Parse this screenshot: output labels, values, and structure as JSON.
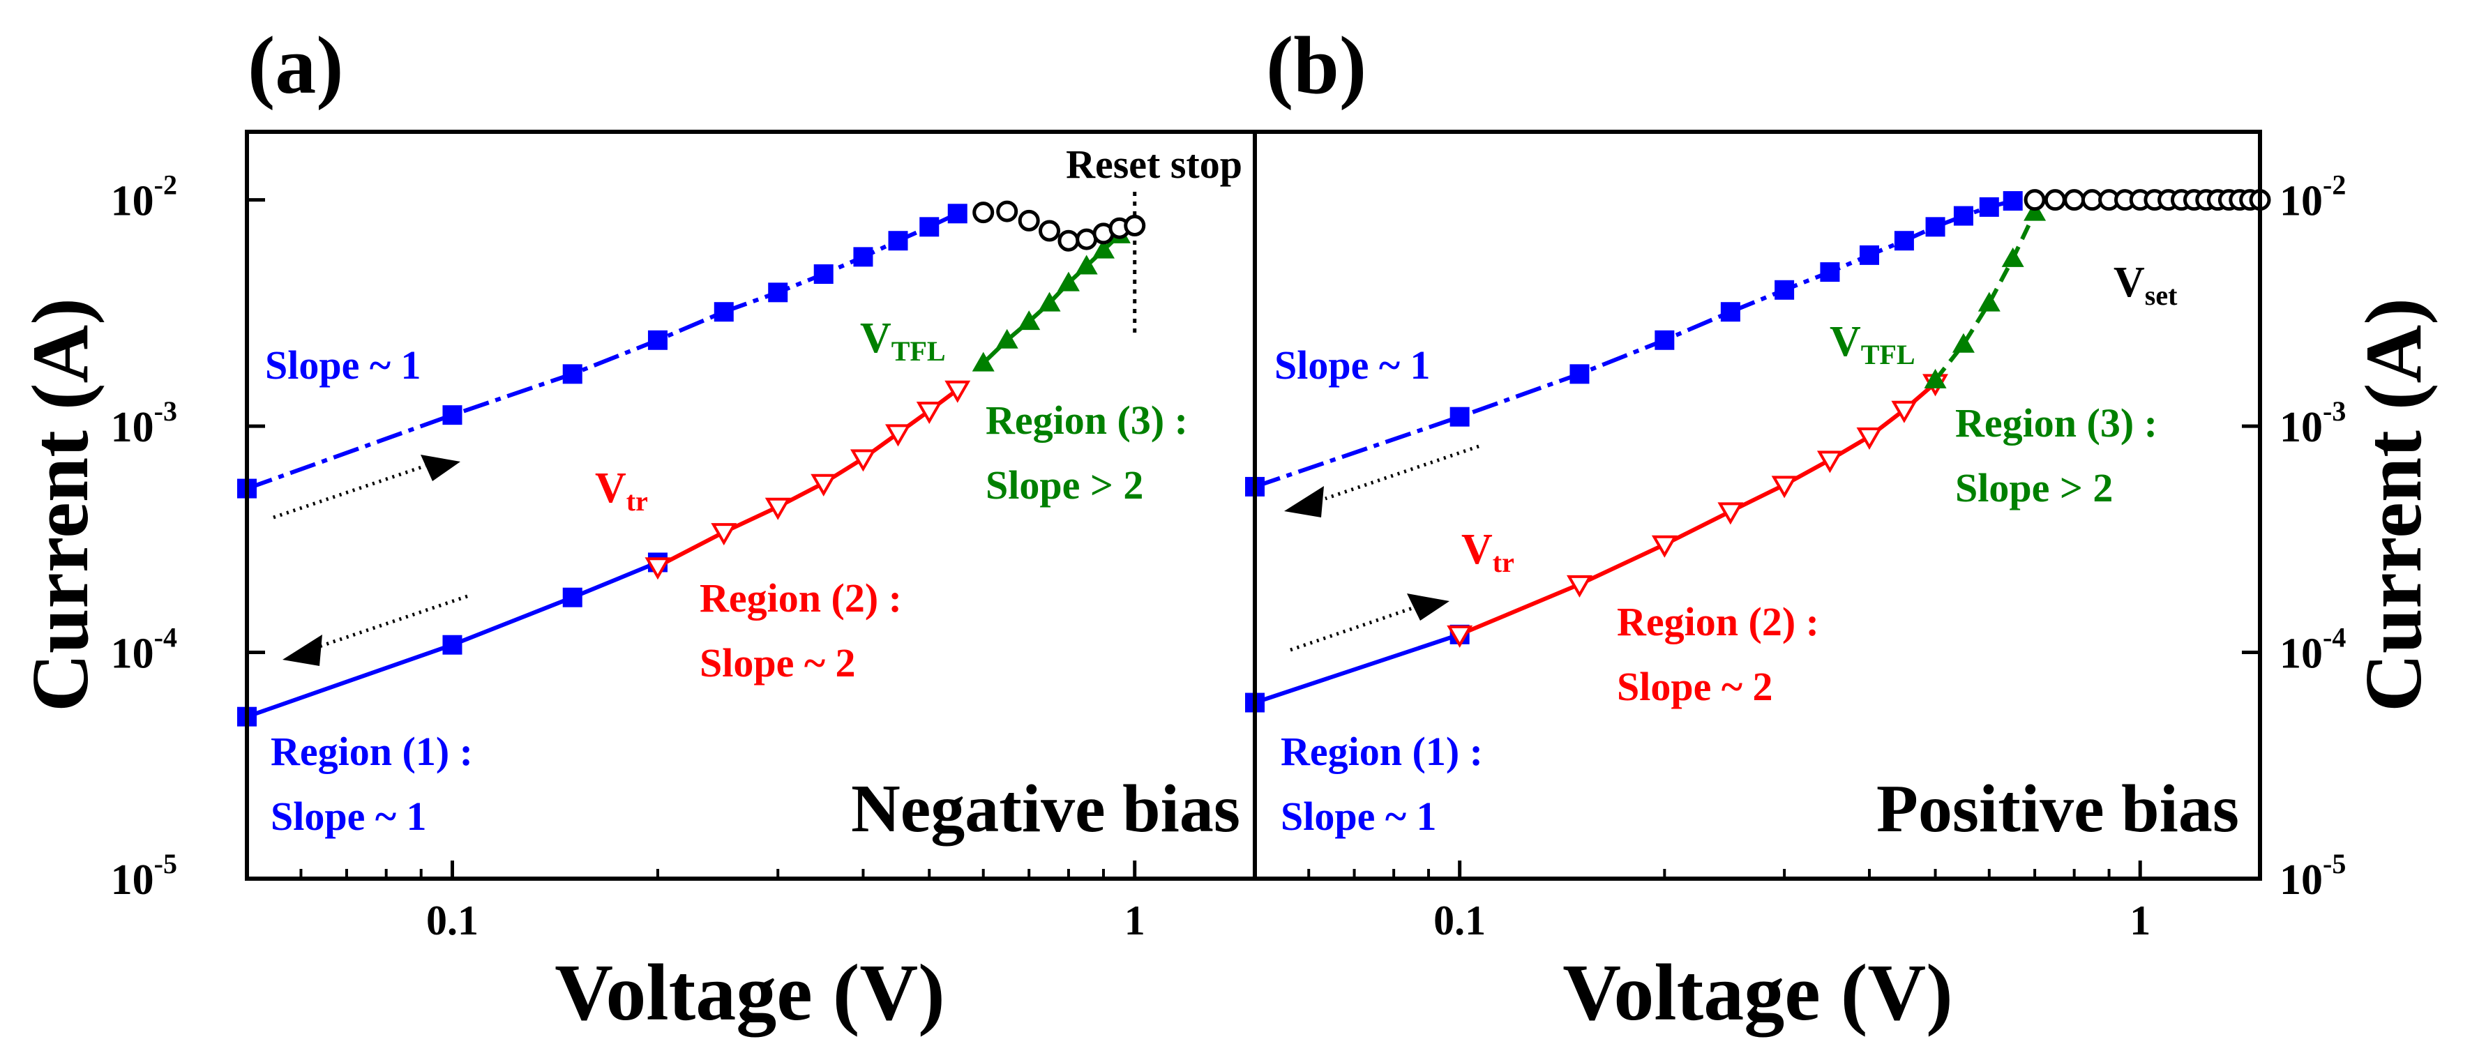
{
  "colors": {
    "hrs": "#0000ff",
    "region2": "#ff0000",
    "region3": "#008000",
    "reset": "#000000"
  },
  "chart_data": [
    {
      "type": "line",
      "panel_label": "(a)",
      "title": "Negative bias",
      "xlabel": "Voltage (V)",
      "ylabel": "Current (A)",
      "xscale": "log",
      "yscale": "log",
      "xlim": [
        0.05,
        1.5
      ],
      "ylim": [
        1e-05,
        0.02
      ],
      "x_ticks": [
        {
          "value": 0.1,
          "label": "0.1"
        },
        {
          "value": 1,
          "label": "1"
        }
      ],
      "y_ticks": [
        {
          "value": 1e-05,
          "base": "10",
          "exp": "-5"
        },
        {
          "value": 0.0001,
          "base": "10",
          "exp": "-4"
        },
        {
          "value": 0.001,
          "base": "10",
          "exp": "-3"
        },
        {
          "value": 0.01,
          "base": "10",
          "exp": "-2"
        }
      ],
      "series": [
        {
          "name": "Initial (blue squares)",
          "color": "#0000ff",
          "marker": "square-filled",
          "line": "solid",
          "x": [
            0.05,
            0.1,
            0.15,
            0.2
          ],
          "y": [
            5.2e-05,
            0.000108,
            0.000175,
            0.00025
          ]
        },
        {
          "name": "Region 2 (red triangles)",
          "color": "#ff0000",
          "marker": "triangle-down-open",
          "line": "solid",
          "x": [
            0.2,
            0.25,
            0.3,
            0.35,
            0.4,
            0.45,
            0.5,
            0.55
          ],
          "y": [
            0.00024,
            0.00034,
            0.00044,
            0.00056,
            0.00072,
            0.00093,
            0.00117,
            0.00145
          ]
        },
        {
          "name": "Region 3 (green triangles)",
          "color": "#008000",
          "marker": "triangle-up-filled",
          "line": "solid",
          "x": [
            0.6,
            0.65,
            0.7,
            0.75,
            0.8,
            0.85,
            0.9,
            0.95
          ],
          "y": [
            0.0019,
            0.0024,
            0.0029,
            0.0035,
            0.0043,
            0.0051,
            0.006,
            0.007
          ]
        },
        {
          "name": "Return (blue squares)",
          "color": "#0000ff",
          "marker": "square-filled",
          "line": "dashdot",
          "x": [
            0.05,
            0.1,
            0.15,
            0.2,
            0.25,
            0.3,
            0.35,
            0.4,
            0.45,
            0.5,
            0.55
          ],
          "y": [
            0.00053,
            0.00112,
            0.0017,
            0.0024,
            0.0032,
            0.0039,
            0.0047,
            0.0056,
            0.0066,
            0.0076,
            0.0087
          ]
        },
        {
          "name": "Reset (black circles)",
          "color": "#000000",
          "marker": "circle-open",
          "line": "none",
          "x": [
            0.6,
            0.65,
            0.7,
            0.75,
            0.8,
            0.85,
            0.9,
            0.95,
            1.0
          ],
          "y": [
            0.0088,
            0.0089,
            0.0081,
            0.0073,
            0.0066,
            0.0067,
            0.0071,
            0.0075,
            0.0077
          ]
        }
      ],
      "annotations": {
        "slope_top": "Slope ~ 1",
        "region1_line1": "Region (1) :",
        "region1_line2": "Slope ~ 1",
        "region2_line1": "Region (2) :",
        "region2_line2": "Slope ~ 2",
        "region3_line1": "Region (3) :",
        "region3_line2": "Slope > 2",
        "vtr_main": "V",
        "vtr_sub": "tr",
        "vtfl_main": "V",
        "vtfl_sub": "TFL",
        "reset_stop": "Reset stop",
        "reset_stop_x": 1.0
      }
    },
    {
      "type": "line",
      "panel_label": "(b)",
      "title": "Positive bias",
      "xlabel": "Voltage (V)",
      "ylabel": "Current (A)",
      "xscale": "log",
      "yscale": "log",
      "xlim": [
        0.05,
        1.5
      ],
      "ylim": [
        1e-05,
        0.02
      ],
      "x_ticks": [
        {
          "value": 0.1,
          "label": "0.1"
        },
        {
          "value": 1,
          "label": "1"
        }
      ],
      "y_ticks": [
        {
          "value": 1e-05,
          "base": "10",
          "exp": "-5"
        },
        {
          "value": 0.0001,
          "base": "10",
          "exp": "-4"
        },
        {
          "value": 0.001,
          "base": "10",
          "exp": "-3"
        },
        {
          "value": 0.01,
          "base": "10",
          "exp": "-2"
        }
      ],
      "series": [
        {
          "name": "Initial (blue line)",
          "color": "#0000ff",
          "marker": "square-filled",
          "line": "solid",
          "x": [
            0.05,
            0.1
          ],
          "y": [
            6e-05,
            0.00012
          ]
        },
        {
          "name": "Region 2 (red triangles)",
          "color": "#ff0000",
          "marker": "triangle-down-open",
          "line": "solid",
          "x": [
            0.1,
            0.15,
            0.2,
            0.25,
            0.3,
            0.35,
            0.4,
            0.45,
            0.5
          ],
          "y": [
            0.00012,
            0.0002,
            0.0003,
            0.00042,
            0.00055,
            0.00071,
            0.0009,
            0.00118,
            0.00155
          ]
        },
        {
          "name": "Region 3 (green triangles)",
          "color": "#008000",
          "marker": "triangle-up-filled",
          "line": "dashed",
          "x": [
            0.5,
            0.55,
            0.6,
            0.65,
            0.7
          ],
          "y": [
            0.0016,
            0.0023,
            0.0035,
            0.0055,
            0.0088
          ]
        },
        {
          "name": "Return (blue squares)",
          "color": "#0000ff",
          "marker": "square-filled",
          "line": "dashdot",
          "x": [
            0.05,
            0.1,
            0.15,
            0.2,
            0.25,
            0.3,
            0.35,
            0.4,
            0.45,
            0.5,
            0.55,
            0.6,
            0.65
          ],
          "y": [
            0.00054,
            0.0011,
            0.0017,
            0.0024,
            0.0032,
            0.004,
            0.0048,
            0.0057,
            0.0066,
            0.0076,
            0.0085,
            0.0093,
            0.0099
          ]
        },
        {
          "name": "Compliance (black circles)",
          "color": "#000000",
          "marker": "circle-open",
          "line": "none",
          "x": [
            0.7,
            0.75,
            0.8,
            0.85,
            0.9,
            0.95,
            1.0,
            1.05,
            1.1,
            1.15,
            1.2,
            1.25,
            1.3,
            1.35,
            1.4,
            1.45,
            1.5
          ],
          "y": [
            0.01,
            0.01,
            0.01,
            0.01,
            0.01,
            0.01,
            0.01,
            0.01,
            0.01,
            0.01,
            0.01,
            0.01,
            0.01,
            0.01,
            0.01,
            0.01,
            0.01
          ]
        }
      ],
      "annotations": {
        "slope_top": "Slope ~ 1",
        "region1_line1": "Region (1) :",
        "region1_line2": "Slope ~ 1",
        "region2_line1": "Region (2) :",
        "region2_line2": "Slope ~ 2",
        "region3_line1": "Region (3) :",
        "region3_line2": "Slope > 2",
        "vtr_main": "V",
        "vtr_sub": "tr",
        "vtfl_main": "V",
        "vtfl_sub": "TFL",
        "vset_main": "V",
        "vset_sub": "set"
      }
    }
  ]
}
